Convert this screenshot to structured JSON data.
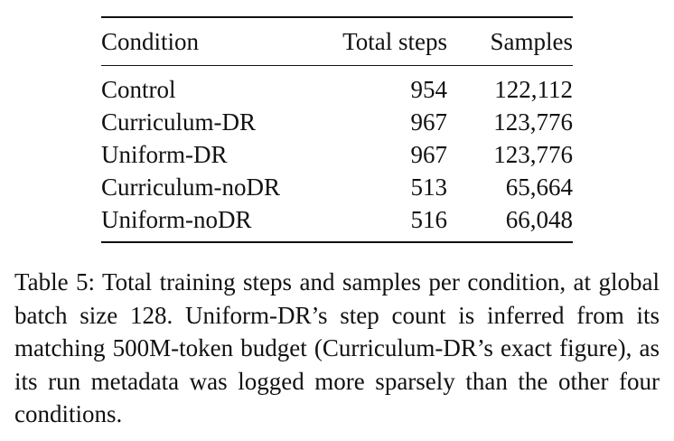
{
  "table": {
    "headers": [
      "Condition",
      "Total steps",
      "Samples"
    ],
    "rows": [
      {
        "condition": "Control",
        "steps": "954",
        "samples": "122,112"
      },
      {
        "condition": "Curriculum-DR",
        "steps": "967",
        "samples": "123,776"
      },
      {
        "condition": "Uniform-DR",
        "steps": "967",
        "samples": "123,776"
      },
      {
        "condition": "Curriculum-noDR",
        "steps": "513",
        "samples": "65,664"
      },
      {
        "condition": "Uniform-noDR",
        "steps": "516",
        "samples": "66,048"
      }
    ]
  },
  "caption": {
    "text": "Table 5: Total training steps and samples per condition, at global batch size 128. Uniform-DR’s step count is inferred from its matching 500M-token budget (Curriculum-DR’s exact figure), as its run metadata was logged more sparsely than the other four conditions."
  }
}
